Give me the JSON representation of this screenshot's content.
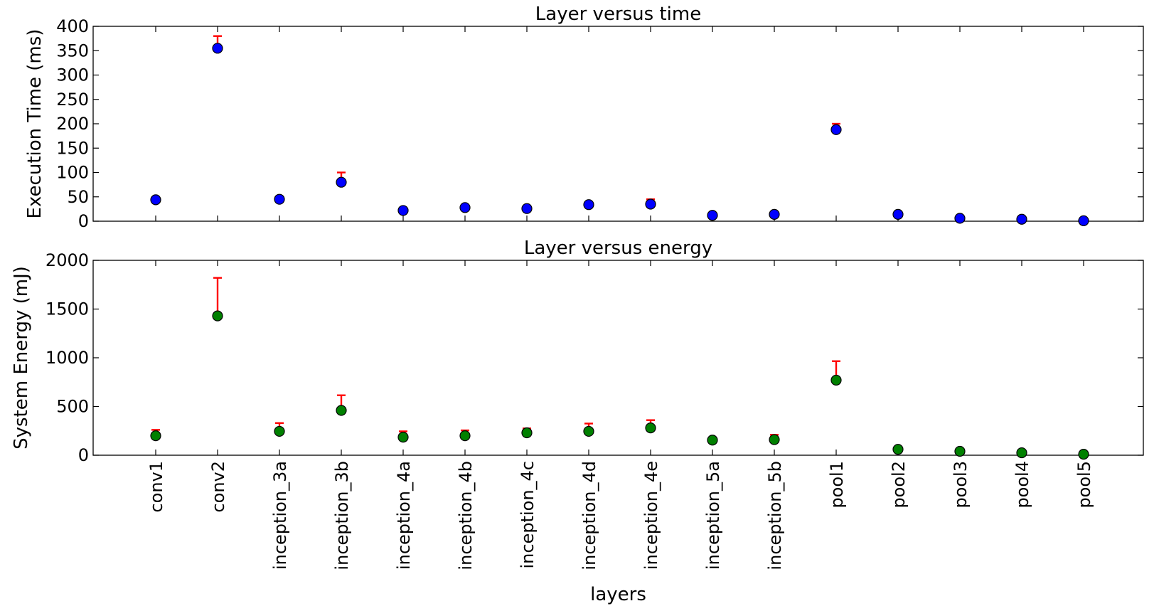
{
  "chart_data": [
    {
      "type": "scatter",
      "title": "Layer versus time",
      "xlabel": "",
      "ylabel": "Execution Time (ms)",
      "ylim": [
        0,
        400
      ],
      "yticks": [
        0,
        50,
        100,
        150,
        200,
        250,
        300,
        350,
        400
      ],
      "categories": [
        "conv1",
        "conv2",
        "inception_3a",
        "inception_3b",
        "inception_4a",
        "inception_4b",
        "inception_4c",
        "inception_4d",
        "inception_4e",
        "inception_5a",
        "inception_5b",
        "pool1",
        "pool2",
        "pool3",
        "pool4",
        "pool5"
      ],
      "values": [
        44,
        355,
        45,
        80,
        22,
        28,
        26,
        34,
        35,
        12,
        14,
        188,
        14,
        6,
        4,
        1
      ],
      "errors": [
        0,
        25,
        0,
        20,
        0,
        0,
        0,
        0,
        10,
        0,
        0,
        12,
        0,
        0,
        0,
        0
      ],
      "point_color": "#0000ff",
      "error_color": "#ff0000",
      "grid": false
    },
    {
      "type": "scatter",
      "title": "Layer versus energy",
      "xlabel": "layers",
      "ylabel": "System Energy (mJ)",
      "ylim": [
        0,
        2000
      ],
      "yticks": [
        0,
        500,
        1000,
        1500,
        2000
      ],
      "categories": [
        "conv1",
        "conv2",
        "inception_3a",
        "inception_3b",
        "inception_4a",
        "inception_4b",
        "inception_4c",
        "inception_4d",
        "inception_4e",
        "inception_5a",
        "inception_5b",
        "pool1",
        "pool2",
        "pool3",
        "pool4",
        "pool5"
      ],
      "values": [
        200,
        1430,
        245,
        460,
        185,
        200,
        230,
        245,
        280,
        155,
        160,
        770,
        60,
        40,
        25,
        10
      ],
      "errors": [
        60,
        390,
        85,
        155,
        60,
        55,
        45,
        80,
        80,
        0,
        50,
        195,
        0,
        0,
        0,
        0
      ],
      "point_color": "#008000",
      "error_color": "#ff0000",
      "grid": false
    }
  ]
}
